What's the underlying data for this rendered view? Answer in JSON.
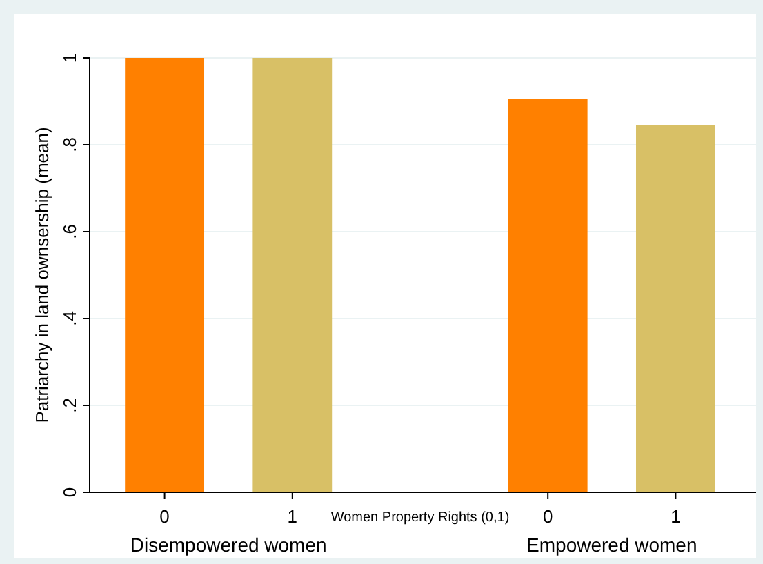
{
  "chart_data": {
    "type": "bar",
    "ylabel": "Patriarchy in land ownsership (mean)",
    "xlabel": "Women Property Rights (0,1)",
    "categories": [
      "0",
      "1",
      null,
      "0",
      "1"
    ],
    "values": [
      1,
      1,
      null,
      0.905,
      0.845
    ],
    "colors": [
      "#ff8000",
      "#d8c066",
      null,
      "#ff8000",
      "#d8c066"
    ],
    "ylim": [
      0,
      1
    ],
    "yticks": [
      {
        "value": 0,
        "label": "0"
      },
      {
        "value": 0.2,
        "label": ".2"
      },
      {
        "value": 0.4,
        "label": ".4"
      },
      {
        "value": 0.6,
        "label": ".6"
      },
      {
        "value": 0.8,
        "label": ".8"
      },
      {
        "value": 1,
        "label": "1"
      }
    ],
    "grid": "y",
    "annotations": [
      "Disempowered women",
      "Empowered women"
    ]
  }
}
